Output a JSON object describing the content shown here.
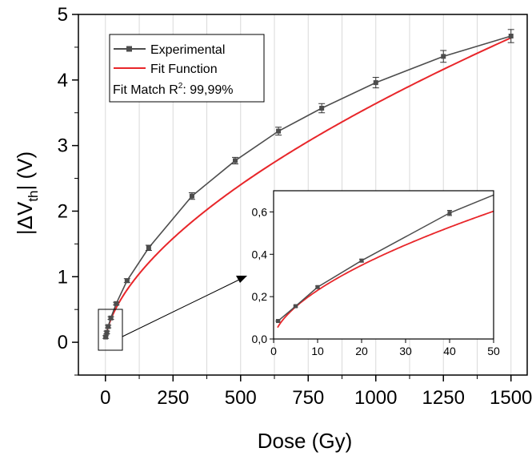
{
  "chart_data": [
    {
      "type": "line",
      "xlabel": "Dose (Gy)",
      "ylabel_parts": [
        "|ΔV",
        "th",
        "| (V)"
      ],
      "xlim": [
        -100,
        1560
      ],
      "ylim": [
        -0.5,
        5.0
      ],
      "x_ticks": [
        0,
        250,
        500,
        750,
        1000,
        1250,
        1500
      ],
      "y_ticks": [
        0,
        1,
        2,
        3,
        4,
        5
      ],
      "grid": "vertical",
      "legend": {
        "placement": "top-left",
        "entries": [
          "Experimental",
          "Fit Function"
        ],
        "annotation_prefix": "Fit Match R",
        "annotation_sup": "2",
        "annotation_value": ": 99,99%"
      },
      "series": [
        {
          "name": "Experimental",
          "color": "#4d4d4d",
          "marker": "square",
          "x": [
            1,
            5,
            10,
            20,
            40,
            80,
            160,
            320,
            480,
            640,
            800,
            1000,
            1250,
            1500
          ],
          "y": [
            0.08,
            0.15,
            0.24,
            0.37,
            0.59,
            0.94,
            1.44,
            2.23,
            2.77,
            3.22,
            3.57,
            3.96,
            4.36,
            4.67
          ],
          "err": [
            0.02,
            0.02,
            0.02,
            0.02,
            0.02,
            0.03,
            0.04,
            0.05,
            0.05,
            0.06,
            0.07,
            0.08,
            0.09,
            0.1
          ]
        },
        {
          "name": "Fit Function",
          "color": "#e8262a",
          "model": "power",
          "a": 0.0577,
          "b": 0.6
        }
      ]
    },
    {
      "type": "line",
      "role": "inset",
      "xlim": [
        0,
        50
      ],
      "ylim": [
        0,
        0.7
      ],
      "x_ticks": [
        0,
        10,
        20,
        30,
        40,
        50
      ],
      "y_ticks": [
        "0,0",
        "0,2",
        "0,4",
        "0,6"
      ],
      "y_tick_values": [
        0,
        0.2,
        0.4,
        0.6
      ],
      "series": [
        {
          "name": "Experimental",
          "color": "#4d4d4d",
          "x": [
            1,
            5,
            10,
            20,
            40,
            50
          ],
          "y": [
            0.085,
            0.155,
            0.245,
            0.37,
            0.595,
            0.68
          ],
          "err": [
            0.003,
            0.004,
            0.005,
            0.007,
            0.012,
            0.0
          ]
        },
        {
          "name": "Fit Function",
          "color": "#e8262a",
          "model": "power",
          "a": 0.0577,
          "b": 0.6
        }
      ]
    }
  ]
}
